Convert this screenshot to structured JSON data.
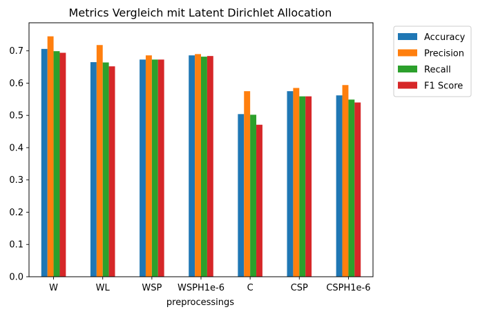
{
  "chart_data": {
    "type": "bar",
    "title": "Metrics Vergleich mit Latent Dirichlet Allocation",
    "xlabel": "preprocessings",
    "ylabel": "",
    "categories": [
      "W",
      "WL",
      "WSP",
      "WSPH1e-6",
      "C",
      "CSP",
      "CSPH1e-6"
    ],
    "series": [
      {
        "name": "Accuracy",
        "color": "#1f77b4",
        "values": [
          0.706,
          0.665,
          0.673,
          0.686,
          0.504,
          0.575,
          0.562
        ]
      },
      {
        "name": "Precision",
        "color": "#ff7f0e",
        "values": [
          0.745,
          0.718,
          0.686,
          0.69,
          0.575,
          0.585,
          0.594
        ]
      },
      {
        "name": "Recall",
        "color": "#2ca02c",
        "values": [
          0.699,
          0.664,
          0.673,
          0.682,
          0.502,
          0.559,
          0.549
        ]
      },
      {
        "name": "F1 Score",
        "color": "#d62728",
        "values": [
          0.694,
          0.652,
          0.673,
          0.684,
          0.471,
          0.559,
          0.54
        ]
      }
    ],
    "ylim": [
      0,
      0.787
    ],
    "yticks": [
      0.0,
      0.1,
      0.2,
      0.3,
      0.4,
      0.5,
      0.6,
      0.7
    ],
    "ytick_labels": [
      "0.0",
      "0.1",
      "0.2",
      "0.3",
      "0.4",
      "0.5",
      "0.6",
      "0.7"
    ],
    "grid": false,
    "legend_position": "outside-top-right"
  }
}
